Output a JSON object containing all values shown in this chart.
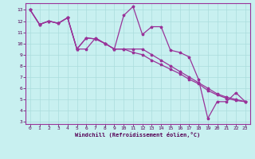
{
  "xlabel": "Windchill (Refroidissement éolien,°C)",
  "background_color": "#c8f0f0",
  "line_color": "#993399",
  "grid_color": "#aadddd",
  "xlim": [
    -0.5,
    23.5
  ],
  "ylim": [
    2.8,
    13.6
  ],
  "xticks": [
    0,
    1,
    2,
    3,
    4,
    5,
    6,
    7,
    8,
    9,
    10,
    11,
    12,
    13,
    14,
    15,
    16,
    17,
    18,
    19,
    20,
    21,
    22,
    23
  ],
  "yticks": [
    3,
    4,
    5,
    6,
    7,
    8,
    9,
    10,
    11,
    12,
    13
  ],
  "series": [
    [
      13.0,
      11.7,
      12.0,
      11.8,
      12.3,
      9.5,
      9.5,
      10.5,
      10.0,
      9.5,
      12.5,
      13.3,
      10.8,
      11.5,
      11.5,
      9.4,
      9.2,
      8.8,
      6.8,
      3.3,
      4.8,
      4.8,
      5.6,
      4.8
    ],
    [
      13.0,
      11.7,
      12.0,
      11.8,
      12.3,
      9.5,
      10.5,
      10.4,
      10.0,
      9.5,
      9.5,
      9.2,
      9.0,
      8.5,
      8.1,
      7.7,
      7.3,
      6.8,
      6.4,
      5.8,
      5.4,
      5.1,
      4.9,
      4.8
    ],
    [
      13.0,
      11.7,
      12.0,
      11.8,
      12.3,
      9.5,
      10.5,
      10.4,
      10.0,
      9.5,
      9.5,
      9.5,
      9.5,
      9.0,
      8.5,
      8.0,
      7.5,
      7.0,
      6.5,
      6.0,
      5.5,
      5.2,
      5.0,
      4.8
    ]
  ]
}
